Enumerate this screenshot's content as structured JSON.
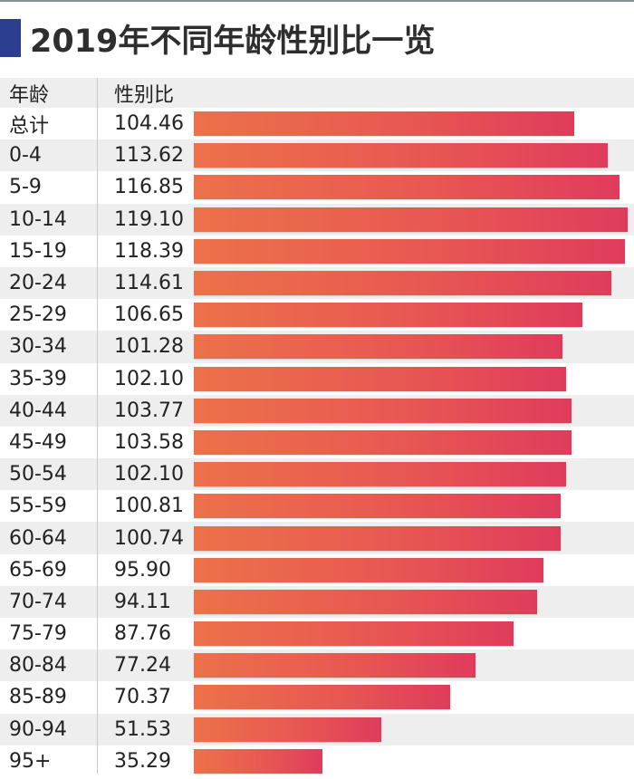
{
  "title": "2019年不同年龄性别比一览",
  "colors": {
    "accent_mark": "#2b3d8f",
    "bar_start": "#ec7149",
    "bar_end": "#df3c5c",
    "row_alt": "#eeeeee"
  },
  "table": {
    "headers": {
      "age": "年龄",
      "ratio": "性别比"
    },
    "rows": [
      {
        "age": "总计",
        "value": "104.46"
      },
      {
        "age": "0-4",
        "value": "113.62"
      },
      {
        "age": "5-9",
        "value": "116.85"
      },
      {
        "age": "10-14",
        "value": "119.10"
      },
      {
        "age": "15-19",
        "value": "118.39"
      },
      {
        "age": "20-24",
        "value": "114.61"
      },
      {
        "age": "25-29",
        "value": "106.65"
      },
      {
        "age": "30-34",
        "value": "101.28"
      },
      {
        "age": "35-39",
        "value": "102.10"
      },
      {
        "age": "40-44",
        "value": "103.77"
      },
      {
        "age": "45-49",
        "value": "103.58"
      },
      {
        "age": "50-54",
        "value": "102.10"
      },
      {
        "age": "55-59",
        "value": "100.81"
      },
      {
        "age": "60-64",
        "value": "100.74"
      },
      {
        "age": "65-69",
        "value": "95.90"
      },
      {
        "age": "70-74",
        "value": "94.11"
      },
      {
        "age": "75-79",
        "value": "87.76"
      },
      {
        "age": "80-84",
        "value": "77.24"
      },
      {
        "age": "85-89",
        "value": "70.37"
      },
      {
        "age": "90-94",
        "value": "51.53"
      },
      {
        "age": "95+",
        "value": "35.29"
      }
    ]
  },
  "chart_data": {
    "type": "bar",
    "orientation": "horizontal",
    "title": "2019年不同年龄性别比一览",
    "xlabel": "",
    "ylabel": "年龄",
    "value_label": "性别比",
    "categories": [
      "总计",
      "0-4",
      "5-9",
      "10-14",
      "15-19",
      "20-24",
      "25-29",
      "30-34",
      "35-39",
      "40-44",
      "45-49",
      "50-54",
      "55-59",
      "60-64",
      "65-69",
      "70-74",
      "75-79",
      "80-84",
      "85-89",
      "90-94",
      "95+"
    ],
    "values": [
      104.46,
      113.62,
      116.85,
      119.1,
      118.39,
      114.61,
      106.65,
      101.28,
      102.1,
      103.77,
      103.58,
      102.1,
      100.81,
      100.74,
      95.9,
      94.11,
      87.76,
      77.24,
      70.37,
      51.53,
      35.29
    ],
    "xlim": [
      0,
      119.1
    ],
    "grid": false,
    "legend": null
  }
}
